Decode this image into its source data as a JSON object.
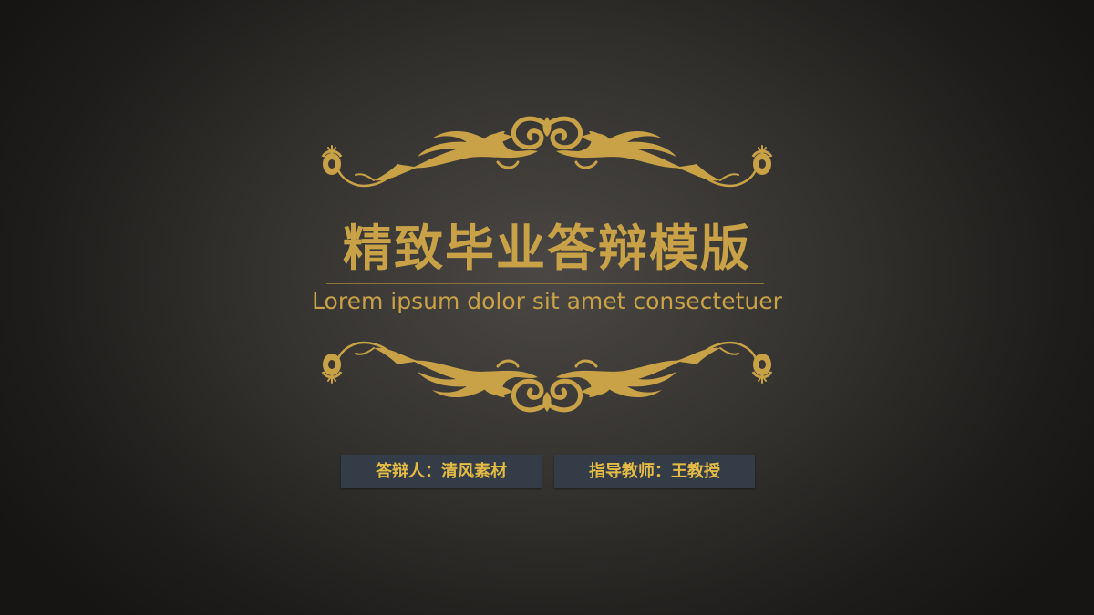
{
  "slide": {
    "title": "精致毕业答辩模版",
    "subtitle": "Lorem ipsum dolor sit amet consectetuer",
    "presenter_label": "答辩人：清风素材",
    "advisor_label": "指导教师：王教授"
  },
  "colors": {
    "gold": "#c9a247",
    "tag_background": "#343c47",
    "tag_text": "#e3bb45",
    "background_center": "#4a4744",
    "background_edge": "#161514"
  },
  "icons": {
    "top_ornament": "baroque-scroll-ornament-icon",
    "bottom_ornament": "baroque-scroll-ornament-icon"
  }
}
